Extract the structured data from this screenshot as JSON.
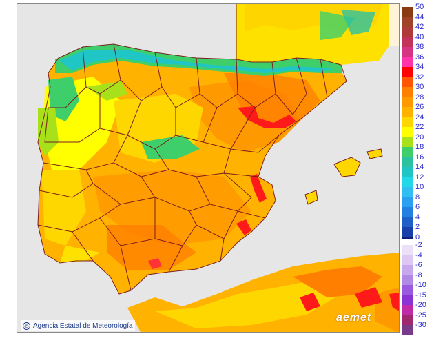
{
  "credit": {
    "text": "Agencia Estatal de Meteorología",
    "logo_glyph": "©"
  },
  "brand": {
    "text": "aemet"
  },
  "bottom_mark": {
    "glyph": "·"
  },
  "colors": {
    "sea": "#e6e6e6",
    "border": "#7a1f1f",
    "land_base": "#ffb300"
  },
  "legend": {
    "positive": [
      {
        "label": "50",
        "color": "#8a3b12"
      },
      {
        "label": "44",
        "color": "#a0412a"
      },
      {
        "label": "42",
        "color": "#b03a3a"
      },
      {
        "label": "40",
        "color": "#c2325a"
      },
      {
        "label": "38",
        "color": "#d63384"
      },
      {
        "label": "36",
        "color": "#ff33aa"
      },
      {
        "label": "34",
        "color": "#ff0000"
      },
      {
        "label": "32",
        "color": "#ff5500"
      },
      {
        "label": "30",
        "color": "#ff7f00"
      },
      {
        "label": "28",
        "color": "#ff9900"
      },
      {
        "label": "26",
        "color": "#ffb300"
      },
      {
        "label": "24",
        "color": "#ffd700"
      },
      {
        "label": "22",
        "color": "#ffff00"
      },
      {
        "label": "20",
        "color": "#a8e01a"
      },
      {
        "label": "18",
        "color": "#3fcf6a"
      },
      {
        "label": "16",
        "color": "#2cc2a0"
      },
      {
        "label": "14",
        "color": "#20c6c6"
      },
      {
        "label": "12",
        "color": "#22d8e8"
      },
      {
        "label": "10",
        "color": "#30bff0"
      },
      {
        "label": "8",
        "color": "#2aa0f0"
      },
      {
        "label": "6",
        "color": "#2280e0"
      },
      {
        "label": "4",
        "color": "#1e60c8"
      },
      {
        "label": "2",
        "color": "#1a3fa8"
      },
      {
        "label": "0",
        "color": "#10207a"
      }
    ],
    "negative": [
      {
        "label": "-2",
        "color": "#ece0f8"
      },
      {
        "label": "-4",
        "color": "#dcc8f2"
      },
      {
        "label": "-6",
        "color": "#c7a8ec"
      },
      {
        "label": "-8",
        "color": "#b088e6"
      },
      {
        "label": "-10",
        "color": "#9a5ae0"
      },
      {
        "label": "-15",
        "color": "#8a32d6"
      },
      {
        "label": "-20",
        "color": "#c02aa8"
      },
      {
        "label": "-25",
        "color": "#a0286e"
      },
      {
        "label": "-30",
        "color": "#7a3a8a"
      }
    ]
  }
}
